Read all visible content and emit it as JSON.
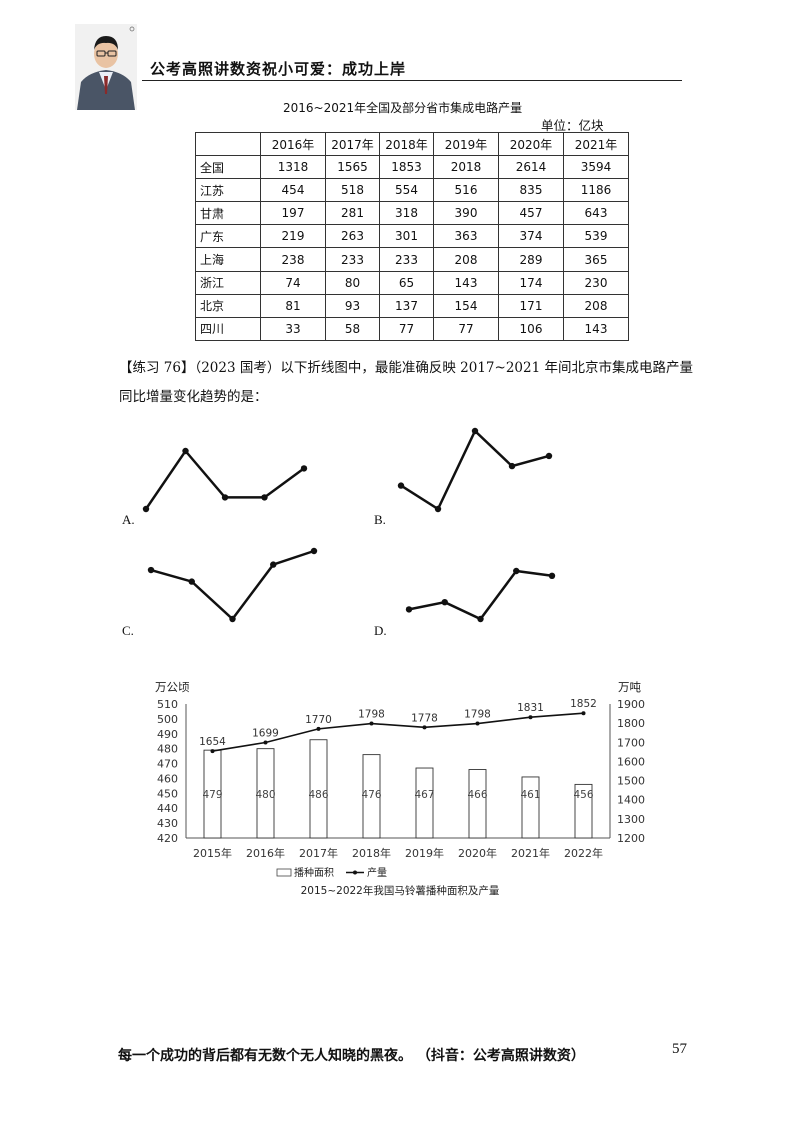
{
  "header": {
    "title": "公考高照讲数资祝小可爱：成功上岸"
  },
  "table": {
    "title": "2016~2021年全国及部分省市集成电路产量",
    "unit": "单位：亿块",
    "years": [
      "2016年",
      "2017年",
      "2018年",
      "2019年",
      "2020年",
      "2021年"
    ],
    "rows": [
      {
        "name": "全国",
        "values": [
          "1318",
          "1565",
          "1853",
          "2018",
          "2614",
          "3594"
        ]
      },
      {
        "name": "江苏",
        "values": [
          "454",
          "518",
          "554",
          "516",
          "835",
          "1186"
        ]
      },
      {
        "name": "甘肃",
        "values": [
          "197",
          "281",
          "318",
          "390",
          "457",
          "643"
        ]
      },
      {
        "name": "广东",
        "values": [
          "219",
          "263",
          "301",
          "363",
          "374",
          "539"
        ]
      },
      {
        "name": "上海",
        "values": [
          "238",
          "233",
          "233",
          "208",
          "289",
          "365"
        ]
      },
      {
        "name": "浙江",
        "values": [
          "74",
          "80",
          "65",
          "143",
          "174",
          "230"
        ]
      },
      {
        "name": "北京",
        "values": [
          "81",
          "93",
          "137",
          "154",
          "171",
          "208"
        ]
      },
      {
        "name": "四川",
        "values": [
          "33",
          "58",
          "77",
          "77",
          "106",
          "143"
        ]
      }
    ]
  },
  "question": {
    "line1": "【练习 76】（2023 国考）以下折线图中，最能准确反映 2017~2021 年间北京市集成电路产量",
    "line2": "同比增量变化趋势的是：",
    "options": [
      {
        "label": "A.",
        "shape": [
          0.0,
          1.0,
          0.2,
          0.2,
          0.7
        ]
      },
      {
        "label": "B.",
        "shape": [
          0.3,
          0.0,
          1.0,
          0.55,
          0.68
        ]
      },
      {
        "label": "C.",
        "shape": [
          0.72,
          0.55,
          0.0,
          0.8,
          1.0
        ]
      },
      {
        "label": "D.",
        "shape": [
          0.2,
          0.35,
          0.0,
          1.0,
          0.9
        ]
      }
    ]
  },
  "chart_data": {
    "type": "bar",
    "title": "2015~2022年我国马铃薯播种面积及产量",
    "categories": [
      "2015年",
      "2016年",
      "2017年",
      "2018年",
      "2019年",
      "2020年",
      "2021年",
      "2022年"
    ],
    "series": [
      {
        "name": "播种面积",
        "type": "bar",
        "axis": "left",
        "values": [
          479,
          480,
          486,
          476,
          467,
          466,
          461,
          456
        ]
      },
      {
        "name": "产量",
        "type": "line",
        "axis": "right",
        "values": [
          1654,
          1699,
          1770,
          1798,
          1778,
          1798,
          1831,
          1852
        ]
      }
    ],
    "ylabel_left": "万公顷",
    "ylabel_right": "万吨",
    "ylim_left": [
      420,
      510
    ],
    "ylim_right": [
      1200,
      1900
    ],
    "yticks_left": [
      420,
      430,
      440,
      450,
      460,
      470,
      480,
      490,
      500,
      510
    ],
    "yticks_right": [
      1200,
      1300,
      1400,
      1500,
      1600,
      1700,
      1800,
      1900
    ],
    "legend": "bottom"
  },
  "footer": {
    "text": "每一个成功的背后都有无数个无人知晓的黑夜。  （抖音：公考高照讲数资）",
    "page": "57"
  }
}
